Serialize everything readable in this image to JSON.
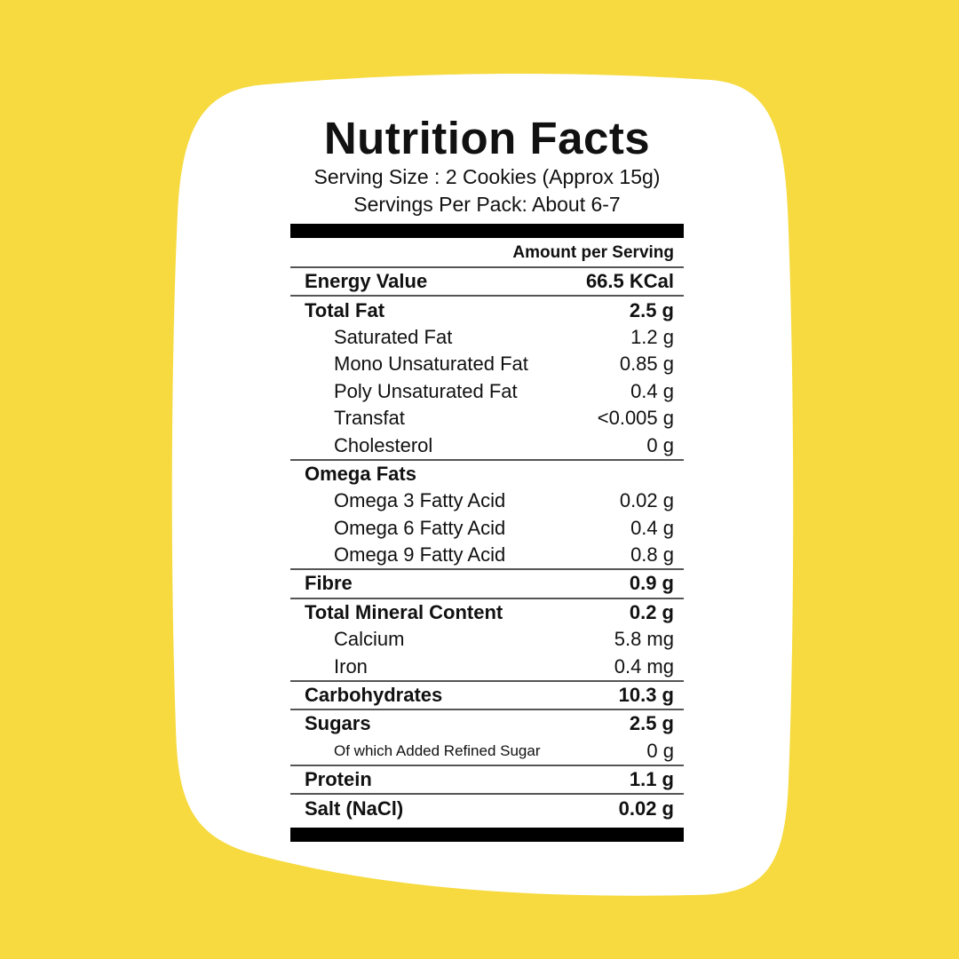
{
  "colors": {
    "background": "#f6da3f",
    "card": "#ffffff",
    "text": "#111111"
  },
  "title": "Nutrition Facts",
  "serving_size": "Serving Size : 2 Cookies (Approx 15g)",
  "servings_per_pack": "Servings Per Pack: About 6-7",
  "column_header": "Amount per Serving",
  "rows": [
    {
      "name": "Energy Value",
      "value": "66.5 KCal",
      "bold": true,
      "indent": false,
      "line": true
    },
    {
      "name": "Total Fat",
      "value": "2.5 g",
      "bold": true,
      "indent": false,
      "line": false
    },
    {
      "name": "Saturated Fat",
      "value": "1.2 g",
      "bold": false,
      "indent": true,
      "line": false
    },
    {
      "name": "Mono Unsaturated Fat",
      "value": "0.85 g",
      "bold": false,
      "indent": true,
      "line": false
    },
    {
      "name": "Poly Unsaturated Fat",
      "value": "0.4 g",
      "bold": false,
      "indent": true,
      "line": false
    },
    {
      "name": "Transfat",
      "value": "<0.005 g",
      "bold": false,
      "indent": true,
      "line": false
    },
    {
      "name": "Cholesterol",
      "value": "0 g",
      "bold": false,
      "indent": true,
      "line": true
    },
    {
      "name": "Omega Fats",
      "value": "",
      "bold": true,
      "indent": false,
      "line": false
    },
    {
      "name": "Omega 3 Fatty Acid",
      "value": "0.02 g",
      "bold": false,
      "indent": true,
      "line": false
    },
    {
      "name": "Omega 6 Fatty Acid",
      "value": "0.4 g",
      "bold": false,
      "indent": true,
      "line": false
    },
    {
      "name": "Omega 9 Fatty Acid",
      "value": "0.8 g",
      "bold": false,
      "indent": true,
      "line": true
    },
    {
      "name": "Fibre",
      "value": "0.9 g",
      "bold": true,
      "indent": false,
      "line": true
    },
    {
      "name": "Total Mineral Content",
      "value": "0.2 g",
      "bold": true,
      "indent": false,
      "line": false
    },
    {
      "name": "Calcium",
      "value": "5.8 mg",
      "bold": false,
      "indent": true,
      "line": false
    },
    {
      "name": "Iron",
      "value": "0.4 mg",
      "bold": false,
      "indent": true,
      "line": true
    },
    {
      "name": "Carbohydrates",
      "value": "10.3 g",
      "bold": true,
      "indent": false,
      "line": true
    },
    {
      "name": "Sugars",
      "value": "2.5 g",
      "bold": true,
      "indent": false,
      "line": false
    },
    {
      "name": "Of which Added Refined Sugar",
      "value": "0 g",
      "bold": false,
      "indent": true,
      "small": true,
      "line": true
    },
    {
      "name": "Protein",
      "value": "1.1 g",
      "bold": true,
      "indent": false,
      "line": true
    },
    {
      "name": "Salt (NaCl)",
      "value": "0.02 g",
      "bold": true,
      "indent": false,
      "line": false
    }
  ]
}
